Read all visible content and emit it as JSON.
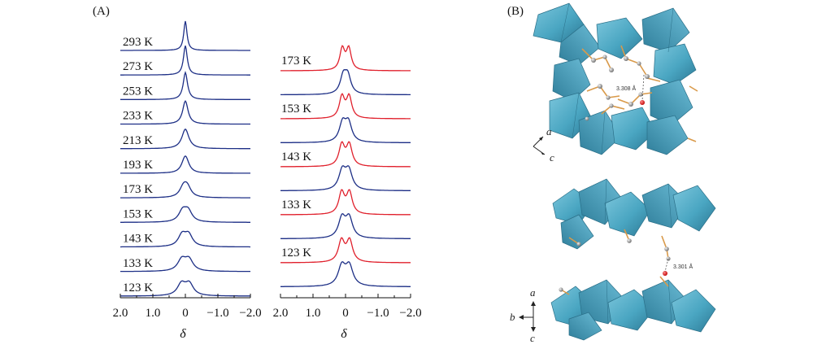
{
  "panel_a_label": "(A)",
  "panel_b_label": "(B)",
  "colors": {
    "experimental": "#1d2f86",
    "simulated": "#e0202c",
    "octahedron_fill": "#4aa6c2",
    "octahedron_dark": "#2e7f9c"
  },
  "chart_data": [
    {
      "type": "line",
      "description_id": "left-stack",
      "xlabel": "δ",
      "xlim": [
        2.0,
        -2.0
      ],
      "tick_labels": [
        "2.0",
        "1.0",
        "0",
        "−1.0",
        "−2.0"
      ],
      "tick_values": [
        2.0,
        1.0,
        0.0,
        -1.0,
        -2.0
      ],
      "series": [
        {
          "name": "293 K",
          "temperature_label": "293 K",
          "linewidth_hz_scale": 0.06,
          "splitting": 0.0,
          "color": "experimental"
        },
        {
          "name": "273 K",
          "temperature_label": "273 K",
          "linewidth_hz_scale": 0.07,
          "splitting": 0.0,
          "color": "experimental"
        },
        {
          "name": "253 K",
          "temperature_label": "253 K",
          "linewidth_hz_scale": 0.08,
          "splitting": 0.0,
          "color": "experimental"
        },
        {
          "name": "233 K",
          "temperature_label": "233 K",
          "linewidth_hz_scale": 0.1,
          "splitting": 0.0,
          "color": "experimental"
        },
        {
          "name": "213 K",
          "temperature_label": "213 K",
          "linewidth_hz_scale": 0.13,
          "splitting": 0.0,
          "color": "experimental"
        },
        {
          "name": "193 K",
          "temperature_label": "193 K",
          "linewidth_hz_scale": 0.16,
          "splitting": 0.05,
          "color": "experimental"
        },
        {
          "name": "173 K",
          "temperature_label": "173 K",
          "linewidth_hz_scale": 0.18,
          "splitting": 0.12,
          "color": "experimental"
        },
        {
          "name": "153 K",
          "temperature_label": "153 K",
          "linewidth_hz_scale": 0.19,
          "splitting": 0.17,
          "color": "experimental"
        },
        {
          "name": "143 K",
          "temperature_label": "143 K",
          "linewidth_hz_scale": 0.19,
          "splitting": 0.2,
          "color": "experimental"
        },
        {
          "name": "133 K",
          "temperature_label": "133 K",
          "linewidth_hz_scale": 0.2,
          "splitting": 0.22,
          "color": "experimental"
        },
        {
          "name": "123 K",
          "temperature_label": "123 K",
          "linewidth_hz_scale": 0.2,
          "splitting": 0.24,
          "color": "experimental"
        }
      ]
    },
    {
      "type": "line",
      "description_id": "right-stack",
      "xlabel": "δ",
      "xlim": [
        2.0,
        -2.0
      ],
      "tick_labels": [
        "2.0",
        "1.0",
        "0",
        "−1.0",
        "−2.0"
      ],
      "tick_values": [
        2.0,
        1.0,
        0.0,
        -1.0,
        -2.0
      ],
      "series": [
        {
          "name": "173 K simulated",
          "temperature_label": "173 K",
          "splitting": 0.2,
          "linewidth_hz_scale": 0.12,
          "color": "simulated"
        },
        {
          "name": "173 K experimental",
          "temperature_label": "",
          "splitting": 0.14,
          "linewidth_hz_scale": 0.15,
          "color": "experimental"
        },
        {
          "name": "153 K simulated",
          "temperature_label": "153 K",
          "splitting": 0.22,
          "linewidth_hz_scale": 0.13,
          "color": "simulated"
        },
        {
          "name": "153 K experimental",
          "temperature_label": "",
          "splitting": 0.18,
          "linewidth_hz_scale": 0.16,
          "color": "experimental"
        },
        {
          "name": "143 K simulated",
          "temperature_label": "143 K",
          "splitting": 0.23,
          "linewidth_hz_scale": 0.14,
          "color": "simulated"
        },
        {
          "name": "143 K experimental",
          "temperature_label": "",
          "splitting": 0.2,
          "linewidth_hz_scale": 0.17,
          "color": "experimental"
        },
        {
          "name": "133 K simulated",
          "temperature_label": "133 K",
          "splitting": 0.24,
          "linewidth_hz_scale": 0.14,
          "color": "simulated"
        },
        {
          "name": "133 K experimental",
          "temperature_label": "",
          "splitting": 0.22,
          "linewidth_hz_scale": 0.17,
          "color": "experimental"
        },
        {
          "name": "123 K simulated",
          "temperature_label": "123 K",
          "splitting": 0.25,
          "linewidth_hz_scale": 0.15,
          "color": "simulated"
        },
        {
          "name": "123 K experimental",
          "temperature_label": "",
          "splitting": 0.23,
          "linewidth_hz_scale": 0.18,
          "color": "experimental"
        }
      ]
    }
  ],
  "structure": {
    "top_axes": {
      "a": "a",
      "c": "c"
    },
    "bottom_axes": {
      "a": "a",
      "b": "b",
      "c": "c"
    },
    "distance_top": "3.308 Å",
    "distance_bottom": "3.301 Å"
  }
}
